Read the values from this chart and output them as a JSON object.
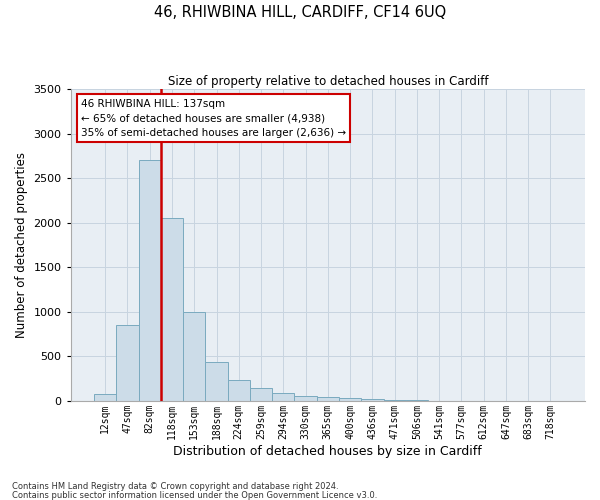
{
  "title": "46, RHIWBINA HILL, CARDIFF, CF14 6UQ",
  "subtitle": "Size of property relative to detached houses in Cardiff",
  "xlabel": "Distribution of detached houses by size in Cardiff",
  "ylabel": "Number of detached properties",
  "bin_labels": [
    "12sqm",
    "47sqm",
    "82sqm",
    "118sqm",
    "153sqm",
    "188sqm",
    "224sqm",
    "259sqm",
    "294sqm",
    "330sqm",
    "365sqm",
    "400sqm",
    "436sqm",
    "471sqm",
    "506sqm",
    "541sqm",
    "577sqm",
    "612sqm",
    "647sqm",
    "683sqm",
    "718sqm"
  ],
  "bar_heights": [
    80,
    850,
    2700,
    2050,
    1000,
    440,
    230,
    140,
    90,
    60,
    40,
    30,
    20,
    12,
    7,
    4,
    3,
    2,
    1,
    1,
    0
  ],
  "bar_color": "#ccdce8",
  "bar_edge_color": "#7aaabf",
  "property_sqm": 137,
  "property_label": "46 RHIWBINA HILL: 137sqm",
  "annotation_line1": "← 65% of detached houses are smaller (4,938)",
  "annotation_line2": "35% of semi-detached houses are larger (2,636) →",
  "annotation_box_color": "#ffffff",
  "annotation_box_edge": "#cc0000",
  "vline_color": "#cc0000",
  "ylim": [
    0,
    3500
  ],
  "yticks": [
    0,
    500,
    1000,
    1500,
    2000,
    2500,
    3000,
    3500
  ],
  "grid_color": "#c8d4e0",
  "background_color": "#e8eef4",
  "footnote1": "Contains HM Land Registry data © Crown copyright and database right 2024.",
  "footnote2": "Contains public sector information licensed under the Open Government Licence v3.0."
}
